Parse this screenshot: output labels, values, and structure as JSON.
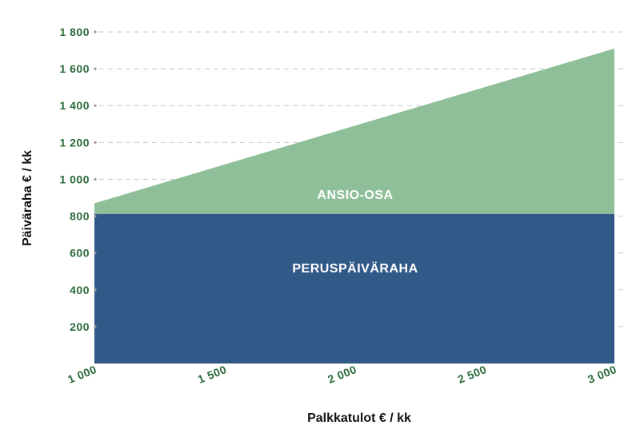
{
  "chart_data": {
    "type": "area",
    "x": [
      1000,
      3000
    ],
    "series": [
      {
        "name": "PERUSPÄIVÄRAHA",
        "values": [
          812,
          812
        ],
        "color": "#325a88"
      },
      {
        "name": "ANSIO-OSA",
        "values": [
          870,
          1710
        ],
        "color": "#8ebf98"
      }
    ],
    "xlabel": "Palkkatulot € / kk",
    "ylabel": "Päiväraha € / kk",
    "xlim": [
      1000,
      3000
    ],
    "ylim": [
      0,
      1800
    ],
    "x_ticks": [
      1000,
      1500,
      2000,
      2500,
      3000
    ],
    "x_tick_labels": [
      "1 000",
      "1 500",
      "2 000",
      "2 500",
      "3 000"
    ],
    "y_ticks": [
      200,
      400,
      600,
      800,
      1000,
      1200,
      1400,
      1600,
      1800
    ],
    "y_tick_labels": [
      "200",
      "400",
      "600",
      "800",
      "1 000",
      "1 200",
      "1 400",
      "1 600",
      "1 800"
    ],
    "grid": true,
    "colors": {
      "tick_text": "#2b6a3a",
      "grid": "#c9c9c9"
    }
  }
}
